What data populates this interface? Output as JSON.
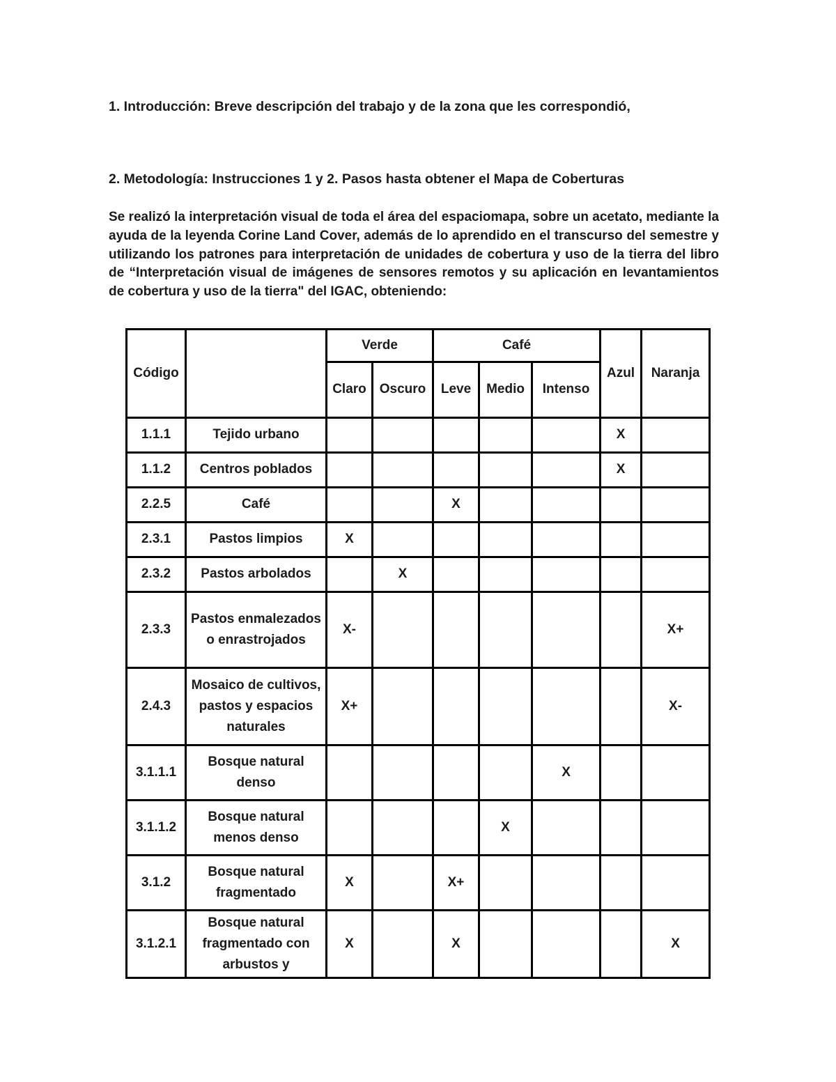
{
  "document": {
    "heading1": "1. Introducción: Breve descripción del trabajo y de la zona que les correspondió,",
    "heading2": "2. Metodología: Instrucciones 1 y 2.  Pasos hasta obtener el Mapa de Coberturas",
    "paragraph": "Se realizó la interpretación visual de toda el área del espaciomapa, sobre un acetato, mediante la ayuda de la leyenda Corine Land Cover, además de lo aprendido en el transcurso del semestre y utilizando los patrones para interpretación de unidades de cobertura y uso de la tierra del libro de “Interpretación visual de imágenes de sensores remotos y su aplicación en levantamientos de cobertura y uso de la tierra\"  del IGAC, obteniendo:"
  },
  "table": {
    "header": {
      "codigo": "Código",
      "nombre": "",
      "verde": "Verde",
      "cafe": "Café",
      "claro": "Claro",
      "oscuro": "Oscuro",
      "leve": "Leve",
      "medio": "Medio",
      "intenso": "Intenso",
      "azul": "Azul",
      "naranja": "Naranja"
    },
    "rows": [
      {
        "codigo": "1.1.1",
        "nombre": "Tejido urbano",
        "claro": "",
        "oscuro": "",
        "leve": "",
        "medio": "",
        "intenso": "",
        "azul": "X",
        "naranja": ""
      },
      {
        "codigo": "1.1.2",
        "nombre": "Centros poblados",
        "claro": "",
        "oscuro": "",
        "leve": "",
        "medio": "",
        "intenso": "",
        "azul": "X",
        "naranja": ""
      },
      {
        "codigo": "2.2.5",
        "nombre": "Café",
        "claro": "",
        "oscuro": "",
        "leve": "X",
        "medio": "",
        "intenso": "",
        "azul": "",
        "naranja": ""
      },
      {
        "codigo": "2.3.1",
        "nombre": "Pastos limpios",
        "claro": "X",
        "oscuro": "",
        "leve": "",
        "medio": "",
        "intenso": "",
        "azul": "",
        "naranja": ""
      },
      {
        "codigo": "2.3.2",
        "nombre": "Pastos arbolados",
        "claro": "",
        "oscuro": "X",
        "leve": "",
        "medio": "",
        "intenso": "",
        "azul": "",
        "naranja": ""
      },
      {
        "codigo": "2.3.3",
        "nombre": "Pastos enmalezados o enrastrojados",
        "claro": "X-",
        "oscuro": "",
        "leve": "",
        "medio": "",
        "intenso": "",
        "azul": "",
        "naranja": "X+"
      },
      {
        "codigo": "2.4.3",
        "nombre": "Mosaico de cultivos, pastos y espacios naturales",
        "claro": "X+",
        "oscuro": "",
        "leve": "",
        "medio": "",
        "intenso": "",
        "azul": "",
        "naranja": "X-"
      },
      {
        "codigo": "3.1.1.1",
        "nombre": "Bosque natural denso",
        "claro": "",
        "oscuro": "",
        "leve": "",
        "medio": "",
        "intenso": "X",
        "azul": "",
        "naranja": ""
      },
      {
        "codigo": "3.1.1.2",
        "nombre": "Bosque natural menos denso",
        "claro": "",
        "oscuro": "",
        "leve": "",
        "medio": "X",
        "intenso": "",
        "azul": "",
        "naranja": ""
      },
      {
        "codigo": "3.1.2",
        "nombre": "Bosque natural fragmentado",
        "claro": "X",
        "oscuro": "",
        "leve": "X+",
        "medio": "",
        "intenso": "",
        "azul": "",
        "naranja": ""
      },
      {
        "codigo": "3.1.2.1",
        "nombre": "Bosque natural fragmentado con arbustos y",
        "claro": "X",
        "oscuro": "",
        "leve": "X",
        "medio": "",
        "intenso": "",
        "azul": "",
        "naranja": "X"
      }
    ]
  }
}
